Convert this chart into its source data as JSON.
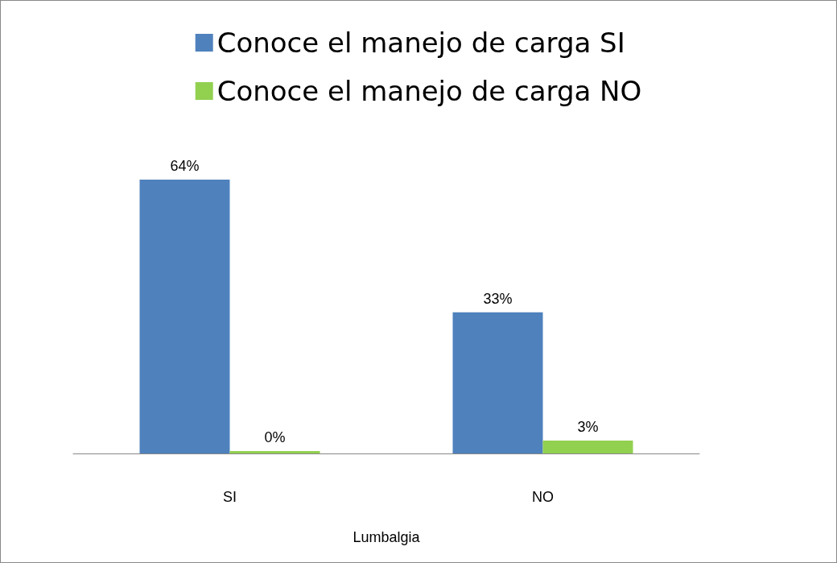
{
  "chart_data": {
    "type": "bar",
    "xlabel": "Lumbalgia",
    "categories": [
      "SI",
      "NO"
    ],
    "series": [
      {
        "name": "Conoce el manejo de carga SI",
        "color": "#4f81bd",
        "values": [
          64,
          33
        ],
        "value_labels": [
          "64%",
          "33%"
        ]
      },
      {
        "name": "Conoce el manejo de carga NO",
        "color": "#92d050",
        "values": [
          0,
          3
        ],
        "value_labels": [
          "0%",
          "3%"
        ]
      }
    ],
    "legend": "top",
    "grid": false
  }
}
